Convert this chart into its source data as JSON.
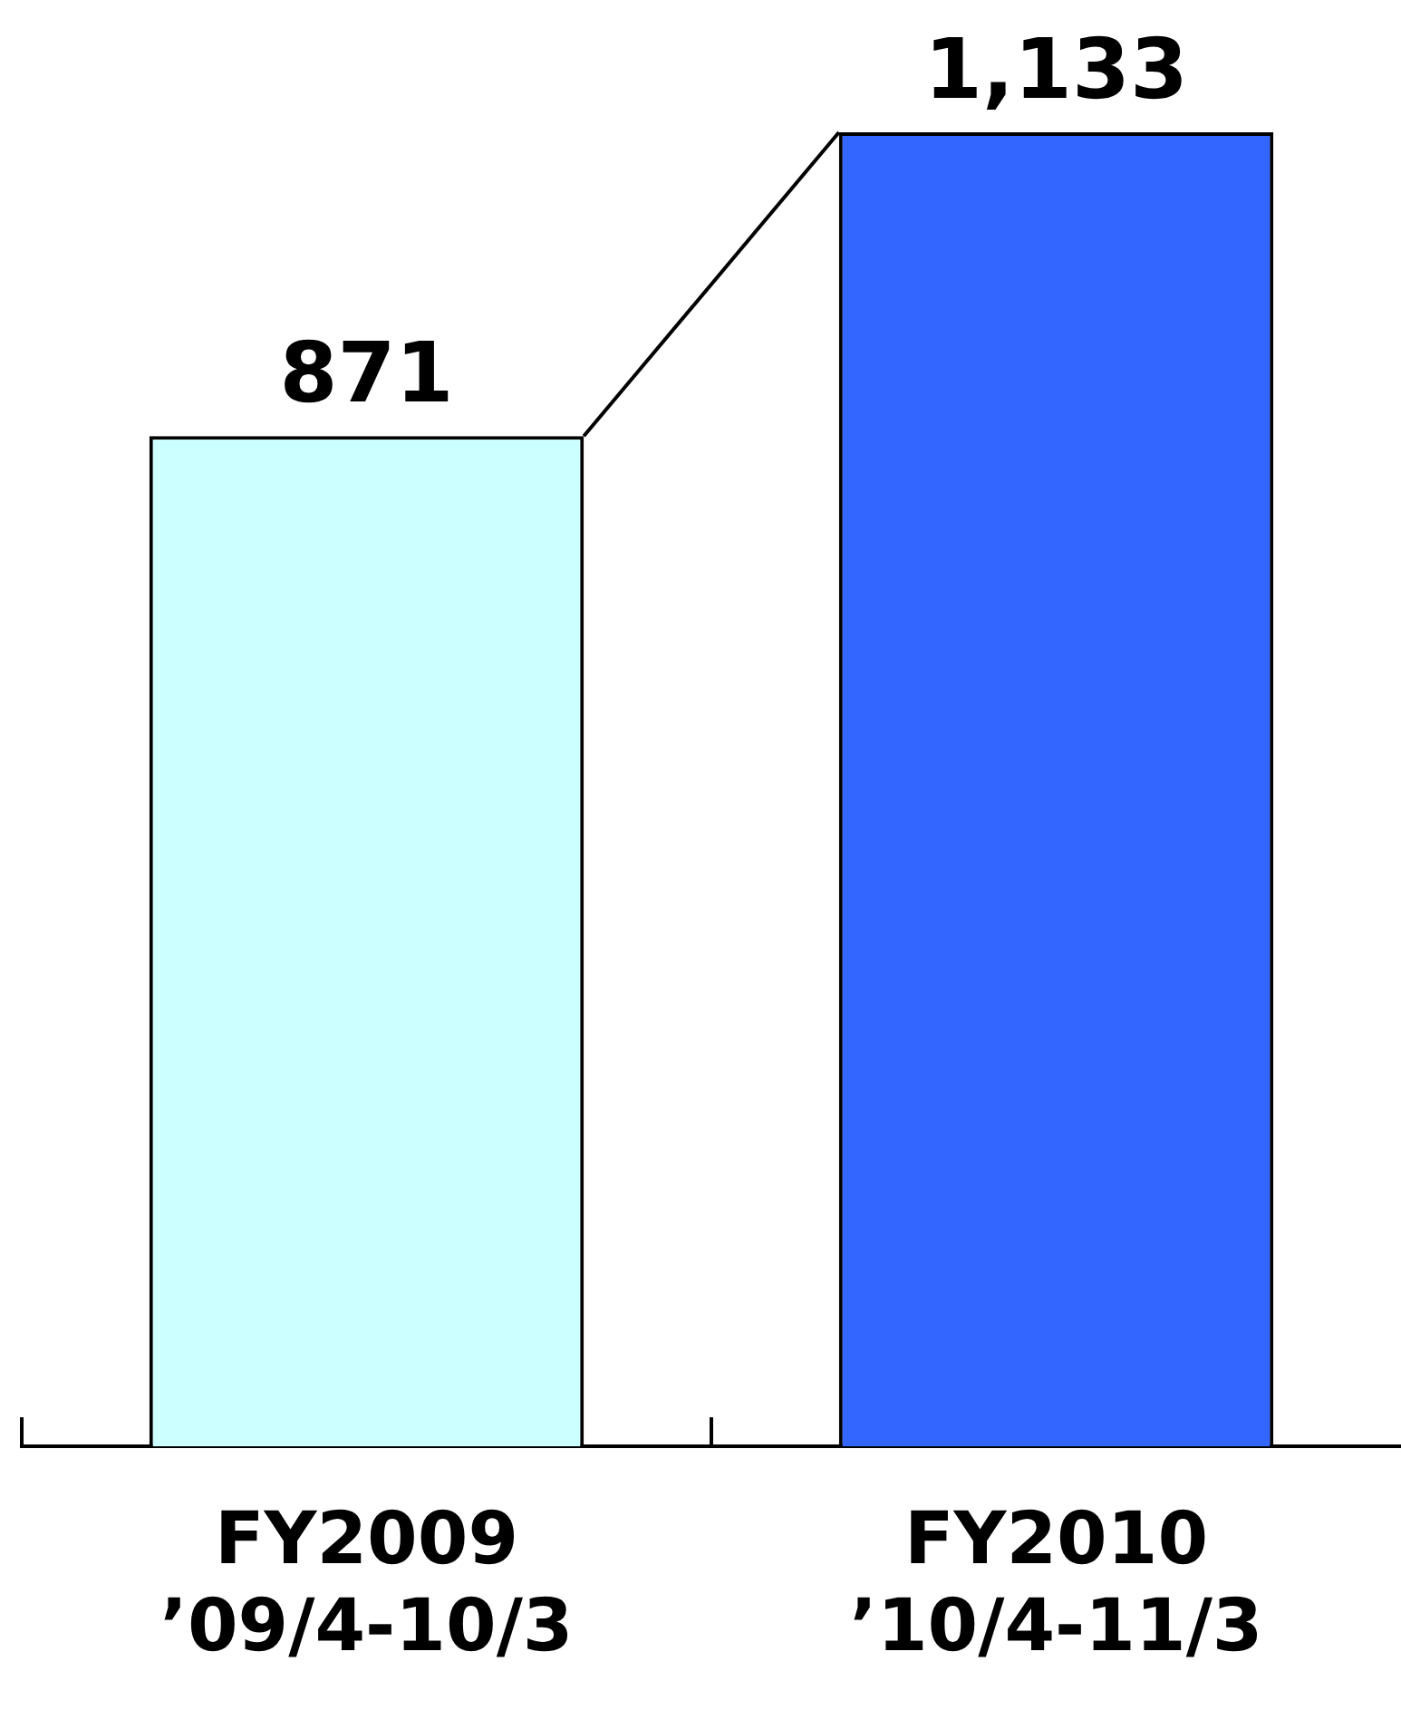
{
  "chart_data": {
    "type": "bar",
    "categories": [
      "FY2009\n’09/4-10/3",
      "FY2010\n’10/4-11/3"
    ],
    "values": [
      871,
      1133
    ],
    "colors": [
      "#ccffff",
      "#3366ff"
    ],
    "value_labels": [
      "871",
      "1,133"
    ],
    "grid": false,
    "legend": false,
    "tick_labels": "x"
  }
}
